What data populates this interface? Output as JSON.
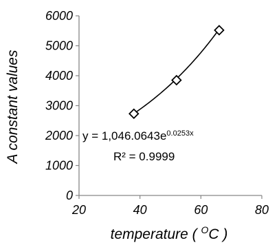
{
  "chart_data": {
    "type": "scatter",
    "xlabel": "temperature ( ᴼC )",
    "xlabel_parts": {
      "pre": "temperature ( ",
      "sup": "O",
      "post": "C )"
    },
    "ylabel": "A constant values",
    "xlim": [
      20,
      80
    ],
    "ylim": [
      0,
      6000
    ],
    "xticks": [
      "20",
      "40",
      "60",
      "80"
    ],
    "yticks": [
      "0",
      "1000",
      "2000",
      "3000",
      "4000",
      "5000",
      "6000"
    ],
    "grid": false,
    "series": [
      {
        "marker": "diamond",
        "x": [
          38,
          52,
          66
        ],
        "y": [
          2730,
          3850,
          5520
        ]
      }
    ],
    "trendline": {
      "kind": "exponential",
      "a": 1046.0643,
      "b": 0.0253,
      "equation_parts": {
        "base": "y = 1,046.0643e",
        "exp": "0.0253x"
      },
      "r_squared_label": "R² = 0.9999"
    }
  }
}
